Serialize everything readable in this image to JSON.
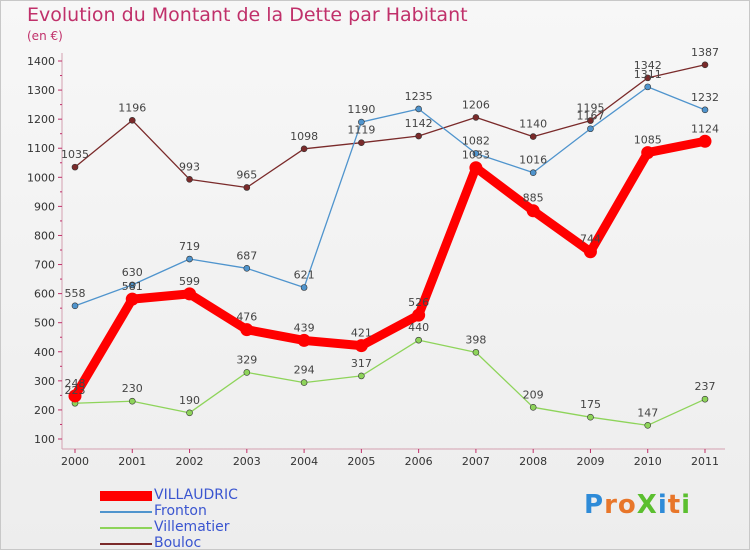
{
  "title": "Evolution du Montant de la Dette par Habitant",
  "subtitle": "(en €)",
  "logo": "ProXiti",
  "chart_data": {
    "type": "line",
    "title": "Evolution du Montant de la Dette par Habitant",
    "subtitle": "(en €)",
    "x": [
      "2000",
      "2001",
      "2002",
      "2003",
      "2004",
      "2005",
      "2006",
      "2007",
      "2008",
      "2009",
      "2010",
      "2011"
    ],
    "ylim": [
      100,
      1400
    ],
    "yticks": [
      100,
      200,
      300,
      400,
      500,
      600,
      700,
      800,
      900,
      1000,
      1100,
      1200,
      1300,
      1400
    ],
    "grid": false,
    "legend_position": "bottom-left",
    "series": [
      {
        "name": "VILLAUDRIC",
        "color": "#ff0000",
        "values": [
          248,
          581,
          599,
          476,
          439,
          421,
          526,
          1033,
          885,
          744,
          1085,
          1124
        ]
      },
      {
        "name": "Fronton",
        "color": "#4f94cd",
        "values": [
          558,
          630,
          719,
          687,
          621,
          1190,
          1235,
          1082,
          1016,
          1167,
          1311,
          1232
        ]
      },
      {
        "name": "Villematier",
        "color": "#8ed45a",
        "values": [
          223,
          230,
          190,
          329,
          294,
          317,
          440,
          398,
          209,
          175,
          147,
          237
        ]
      },
      {
        "name": "Bouloc",
        "color": "#7a2a2a",
        "values": [
          1035,
          1196,
          993,
          965,
          1098,
          1119,
          1142,
          1206,
          1140,
          1195,
          1342,
          1387
        ]
      }
    ]
  }
}
